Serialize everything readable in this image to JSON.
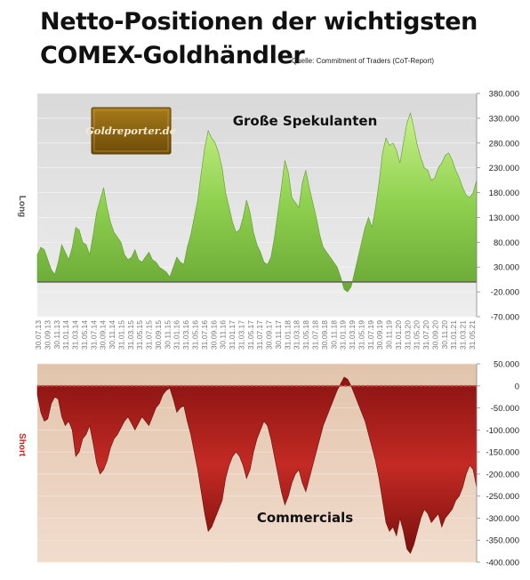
{
  "header": {
    "title_line1": "Netto-Positionen der wichtigsten",
    "title_line2": "COMEX-Goldhändler",
    "source": "Quelle: Commitment of Traders (CoT-Report)"
  },
  "logo": {
    "text": "Goldreporter.de"
  },
  "colors": {
    "top_fill": "#8fd14f",
    "top_bg": "#e4e4e4",
    "bottom_fill": "#b8231f",
    "bottom_bg": "#ead0bd",
    "long_label": "#555555",
    "short_label": "#c0261f",
    "logo_bg": "#8a6410",
    "logo_text": "#f3e8c8"
  },
  "chart_data": [
    {
      "type": "area",
      "title": "Große Spekulanten",
      "ylabel": "Long",
      "ylim": [
        -70000,
        380000
      ],
      "y_ticks": [
        "380.000",
        "330.000",
        "280.000",
        "230.000",
        "180.000",
        "130.000",
        "80.000",
        "30.000",
        "-20.000",
        "-70.000"
      ],
      "x_ticks": [
        "30.07.13",
        "30.09.13",
        "30.11.13",
        "31.01.14",
        "31.03.14",
        "31.05.14",
        "31.07.14",
        "30.09.14",
        "30.11.14",
        "31.01.15",
        "31.03.15",
        "31.05.15",
        "31.07.15",
        "30.09.15",
        "30.11.15",
        "31.01.16",
        "31.03.16",
        "31.05.16",
        "31.07.16",
        "30.09.16",
        "30.11.16",
        "31.01.17",
        "31.03.17",
        "31.05.17",
        "31.07.17",
        "30.09.17",
        "30.11.17",
        "31.01.18",
        "31.03.18",
        "31.05.18",
        "31.07.18",
        "30.09.18",
        "30.11.18",
        "31.01.19",
        "31.03.19",
        "31.05.19",
        "31.07.19",
        "30.09.19",
        "30.11.19",
        "31.01.20",
        "31.03.20",
        "31.05.20",
        "31.07.20",
        "30.09.20",
        "30.11.20",
        "31.01.21",
        "31.03.21",
        "31.05.21"
      ],
      "series": [
        {
          "values": [
            55000,
            70000,
            65000,
            45000,
            25000,
            15000,
            40000,
            75000,
            60000,
            45000,
            70000,
            110000,
            105000,
            80000,
            75000,
            55000,
            95000,
            140000,
            165000,
            190000,
            150000,
            120000,
            100000,
            90000,
            80000,
            55000,
            45000,
            50000,
            65000,
            45000,
            40000,
            50000,
            60000,
            45000,
            40000,
            30000,
            25000,
            20000,
            10000,
            30000,
            50000,
            40000,
            35000,
            70000,
            95000,
            130000,
            165000,
            220000,
            270000,
            305000,
            290000,
            280000,
            260000,
            230000,
            180000,
            150000,
            120000,
            100000,
            105000,
            130000,
            165000,
            140000,
            100000,
            75000,
            60000,
            40000,
            35000,
            50000,
            90000,
            140000,
            190000,
            245000,
            220000,
            170000,
            160000,
            150000,
            200000,
            225000,
            190000,
            160000,
            130000,
            95000,
            70000,
            60000,
            50000,
            40000,
            30000,
            10000,
            -15000,
            -20000,
            -10000,
            20000,
            50000,
            80000,
            110000,
            130000,
            110000,
            150000,
            200000,
            260000,
            290000,
            275000,
            280000,
            265000,
            240000,
            280000,
            320000,
            340000,
            310000,
            275000,
            250000,
            230000,
            225000,
            205000,
            210000,
            230000,
            240000,
            255000,
            260000,
            245000,
            225000,
            210000,
            190000,
            175000,
            170000,
            180000,
            205000
          ]
        }
      ]
    },
    {
      "type": "area",
      "title": "Commercials",
      "ylabel": "Short",
      "ylim": [
        -400000,
        50000
      ],
      "y_ticks": [
        "50.000",
        "0",
        "-50.000",
        "-100.000",
        "-150.000",
        "-200.000",
        "-250.000",
        "-300.000",
        "-350.000",
        "-400.000"
      ],
      "series": [
        {
          "values": [
            -20000,
            -60000,
            -80000,
            -75000,
            -40000,
            -25000,
            -30000,
            -70000,
            -90000,
            -80000,
            -100000,
            -160000,
            -150000,
            -120000,
            -110000,
            -90000,
            -130000,
            -175000,
            -200000,
            -190000,
            -170000,
            -140000,
            -120000,
            -110000,
            -95000,
            -80000,
            -70000,
            -85000,
            -100000,
            -85000,
            -70000,
            -80000,
            -90000,
            -70000,
            -50000,
            -40000,
            -20000,
            -10000,
            -5000,
            -30000,
            -60000,
            -50000,
            -45000,
            -80000,
            -110000,
            -150000,
            -190000,
            -240000,
            -290000,
            -330000,
            -320000,
            -300000,
            -280000,
            -260000,
            -210000,
            -180000,
            -160000,
            -150000,
            -160000,
            -180000,
            -210000,
            -190000,
            -150000,
            -120000,
            -100000,
            -80000,
            -90000,
            -120000,
            -160000,
            -200000,
            -240000,
            -270000,
            -250000,
            -220000,
            -200000,
            -190000,
            -220000,
            -240000,
            -210000,
            -180000,
            -150000,
            -120000,
            -90000,
            -70000,
            -50000,
            -30000,
            -10000,
            5000,
            20000,
            15000,
            0,
            -20000,
            -40000,
            -60000,
            -80000,
            -110000,
            -140000,
            -170000,
            -210000,
            -260000,
            -310000,
            -330000,
            -320000,
            -340000,
            -300000,
            -330000,
            -370000,
            -380000,
            -360000,
            -330000,
            -300000,
            -280000,
            -290000,
            -310000,
            -300000,
            -290000,
            -320000,
            -300000,
            -290000,
            -280000,
            -260000,
            -250000,
            -230000,
            -200000,
            -180000,
            -190000,
            -230000
          ]
        }
      ]
    }
  ]
}
